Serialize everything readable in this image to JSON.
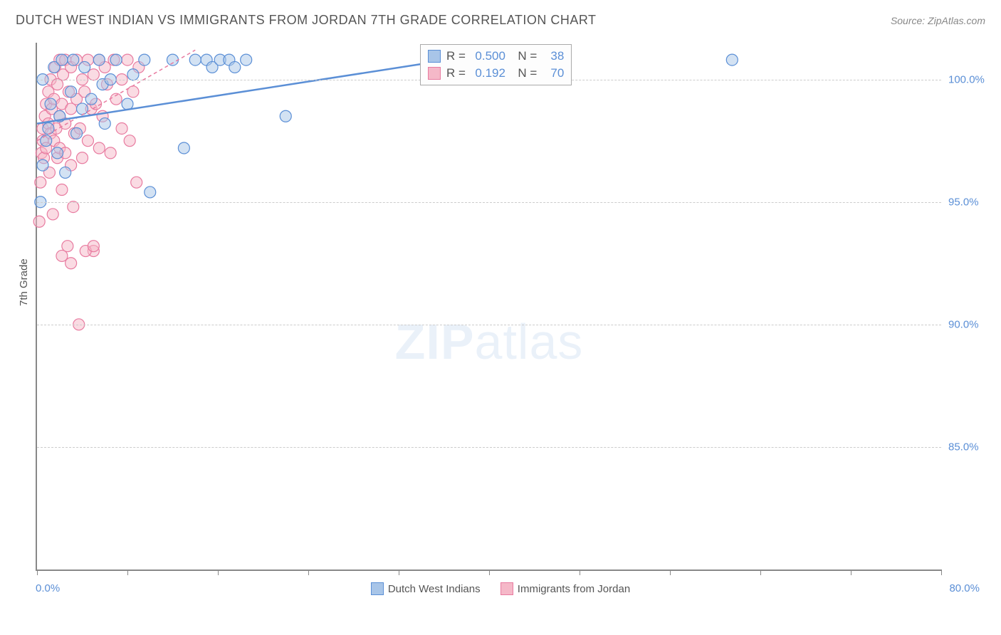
{
  "title": "DUTCH WEST INDIAN VS IMMIGRANTS FROM JORDAN 7TH GRADE CORRELATION CHART",
  "source": "Source: ZipAtlas.com",
  "y_axis_label": "7th Grade",
  "watermark_zip": "ZIP",
  "watermark_atlas": "atlas",
  "chart": {
    "type": "scatter",
    "xlim": [
      0,
      80
    ],
    "ylim": [
      80,
      101.5
    ],
    "x_origin_label": "0.0%",
    "x_max_label": "80.0%",
    "x_ticks": [
      0,
      8,
      16,
      24,
      32,
      40,
      48,
      56,
      64,
      72,
      80
    ],
    "y_gridlines": [
      85,
      90,
      95,
      100
    ],
    "y_tick_labels": [
      "85.0%",
      "90.0%",
      "95.0%",
      "100.0%"
    ],
    "background_color": "#ffffff",
    "grid_color": "#cccccc",
    "axis_color": "#888888",
    "label_color": "#5b8fd6",
    "marker_radius": 8,
    "marker_opacity": 0.5,
    "marker_stroke_width": 1.2,
    "series": [
      {
        "name": "Dutch West Indians",
        "color_fill": "#a8c5e8",
        "color_stroke": "#5b8fd6",
        "R": "0.500",
        "N": "38",
        "trend": {
          "x1": 0,
          "y1": 98.2,
          "x2": 35,
          "y2": 100.7,
          "width": 2.5,
          "dash": "none"
        },
        "points": [
          [
            0.3,
            95.0
          ],
          [
            0.5,
            96.5
          ],
          [
            0.5,
            100.0
          ],
          [
            0.8,
            97.5
          ],
          [
            1.0,
            98.0
          ],
          [
            1.2,
            99.0
          ],
          [
            1.5,
            100.5
          ],
          [
            1.8,
            97.0
          ],
          [
            2.0,
            98.5
          ],
          [
            2.2,
            100.8
          ],
          [
            2.5,
            96.2
          ],
          [
            3.0,
            99.5
          ],
          [
            3.2,
            100.8
          ],
          [
            3.5,
            97.8
          ],
          [
            4.0,
            98.8
          ],
          [
            4.2,
            100.5
          ],
          [
            4.8,
            99.2
          ],
          [
            5.5,
            100.8
          ],
          [
            5.8,
            99.8
          ],
          [
            6.0,
            98.2
          ],
          [
            6.5,
            100.0
          ],
          [
            7.0,
            100.8
          ],
          [
            8.0,
            99.0
          ],
          [
            8.5,
            100.2
          ],
          [
            9.5,
            100.8
          ],
          [
            10.0,
            95.4
          ],
          [
            12.0,
            100.8
          ],
          [
            13.0,
            97.2
          ],
          [
            14.0,
            100.8
          ],
          [
            15.0,
            100.8
          ],
          [
            15.5,
            100.5
          ],
          [
            16.2,
            100.8
          ],
          [
            17.0,
            100.8
          ],
          [
            17.5,
            100.5
          ],
          [
            18.5,
            100.8
          ],
          [
            22.0,
            98.5
          ],
          [
            35.5,
            100.8
          ],
          [
            61.5,
            100.8
          ]
        ]
      },
      {
        "name": "Immigrants from Jordan",
        "color_fill": "#f5b8c8",
        "color_stroke": "#e87ba0",
        "R": "0.192",
        "N": "70",
        "trend": {
          "x1": 0,
          "y1": 97.5,
          "x2": 14,
          "y2": 101.2,
          "width": 1.5,
          "dash": "5,4"
        },
        "points": [
          [
            0.2,
            94.2
          ],
          [
            0.3,
            95.8
          ],
          [
            0.4,
            97.0
          ],
          [
            0.5,
            97.5
          ],
          [
            0.5,
            98.0
          ],
          [
            0.6,
            96.8
          ],
          [
            0.7,
            98.5
          ],
          [
            0.8,
            99.0
          ],
          [
            0.8,
            97.2
          ],
          [
            1.0,
            98.2
          ],
          [
            1.0,
            99.5
          ],
          [
            1.1,
            96.2
          ],
          [
            1.2,
            97.8
          ],
          [
            1.2,
            100.0
          ],
          [
            1.3,
            98.8
          ],
          [
            1.4,
            94.5
          ],
          [
            1.5,
            97.5
          ],
          [
            1.5,
            99.2
          ],
          [
            1.6,
            100.5
          ],
          [
            1.7,
            98.0
          ],
          [
            1.8,
            96.8
          ],
          [
            1.8,
            99.8
          ],
          [
            2.0,
            97.2
          ],
          [
            2.0,
            98.5
          ],
          [
            2.0,
            100.8
          ],
          [
            2.2,
            95.5
          ],
          [
            2.2,
            99.0
          ],
          [
            2.3,
            100.2
          ],
          [
            2.5,
            97.0
          ],
          [
            2.5,
            98.2
          ],
          [
            2.5,
            100.8
          ],
          [
            2.7,
            93.2
          ],
          [
            2.8,
            99.5
          ],
          [
            3.0,
            96.5
          ],
          [
            3.0,
            98.8
          ],
          [
            3.0,
            100.5
          ],
          [
            3.2,
            94.8
          ],
          [
            3.3,
            97.8
          ],
          [
            3.5,
            99.2
          ],
          [
            3.5,
            100.8
          ],
          [
            3.7,
            90.0
          ],
          [
            3.8,
            98.0
          ],
          [
            4.0,
            96.8
          ],
          [
            4.0,
            100.0
          ],
          [
            4.2,
            99.5
          ],
          [
            4.5,
            97.5
          ],
          [
            4.5,
            100.8
          ],
          [
            4.8,
            98.8
          ],
          [
            5.0,
            93.0
          ],
          [
            5.0,
            100.2
          ],
          [
            5.2,
            99.0
          ],
          [
            5.5,
            97.2
          ],
          [
            5.5,
            100.8
          ],
          [
            5.8,
            98.5
          ],
          [
            6.0,
            100.5
          ],
          [
            6.2,
            99.8
          ],
          [
            6.5,
            97.0
          ],
          [
            6.8,
            100.8
          ],
          [
            7.0,
            99.2
          ],
          [
            7.5,
            98.0
          ],
          [
            7.5,
            100.0
          ],
          [
            8.0,
            100.8
          ],
          [
            8.2,
            97.5
          ],
          [
            8.5,
            99.5
          ],
          [
            8.8,
            95.8
          ],
          [
            9.0,
            100.5
          ],
          [
            4.3,
            93.0
          ],
          [
            5.0,
            93.2
          ],
          [
            2.2,
            92.8
          ],
          [
            3.0,
            92.5
          ]
        ]
      }
    ]
  },
  "legend": {
    "items": [
      {
        "label": "Dutch West Indians",
        "fill": "#a8c5e8",
        "stroke": "#5b8fd6"
      },
      {
        "label": "Immigrants from Jordan",
        "fill": "#f5b8c8",
        "stroke": "#e87ba0"
      }
    ]
  }
}
